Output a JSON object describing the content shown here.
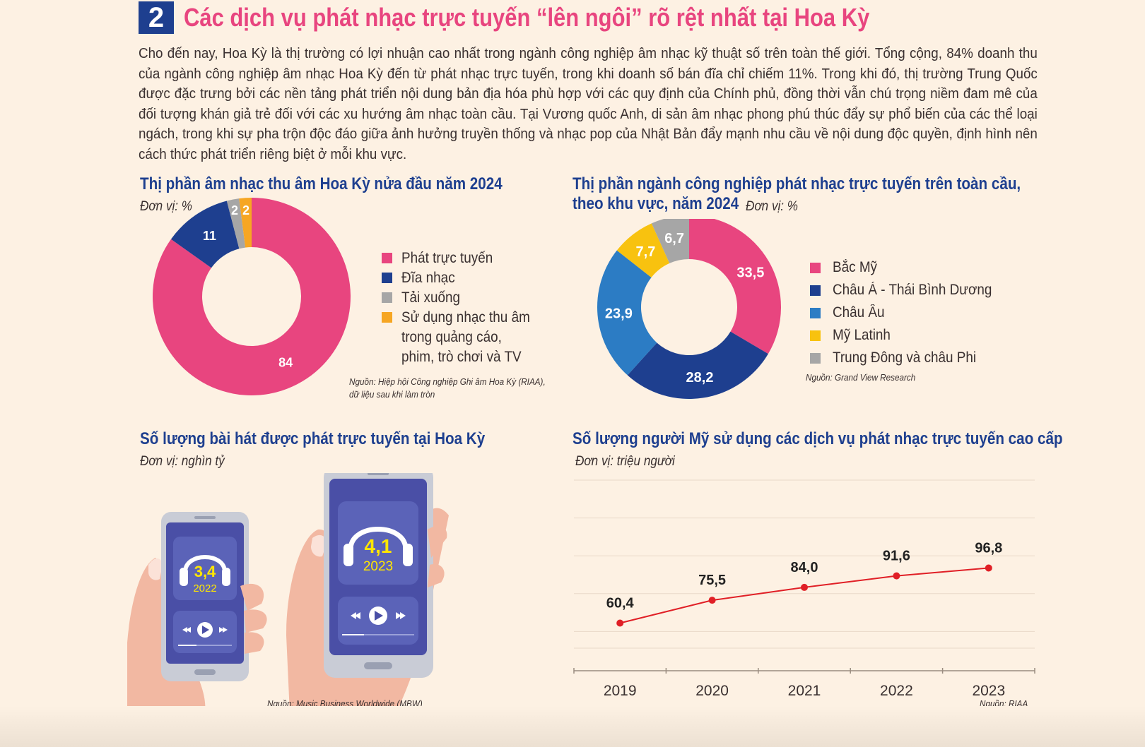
{
  "header": {
    "number": "2",
    "title": "Các dịch vụ phát nhạc trực tuyến “lên ngôi” rõ rệt nhất tại Hoa Kỳ"
  },
  "intro": "Cho đến nay, Hoa Kỳ là thị trường có lợi nhuận cao nhất trong ngành công nghiệp âm nhạc kỹ thuật số trên toàn thế giới. Tổng cộng, 84% doanh thu của ngành công nghiệp âm nhạc Hoa Kỳ đến từ phát nhạc trực tuyến, trong khi doanh số bán đĩa chỉ chiếm 11%. Trong khi đó, thị trường Trung Quốc được đặc trưng bởi các nền tảng phát triển nội dung bản địa hóa phù hợp với các quy định của Chính phủ, đồng thời vẫn chú trọng niềm đam mê của đối tượng khán giả trẻ đối với các xu hướng âm nhạc toàn cầu. Tại Vương quốc Anh, di sản âm nhạc phong phú thúc đẩy sự phổ biến của các thể loại ngách, trong khi sự pha trộn độc đáo giữa ảnh hưởng truyền thống và nhạc pop của Nhật Bản đẩy mạnh nhu cầu về nội dung độc quyền, định hình nên cách thức phát triển riêng biệt ở mỗi khu vực.",
  "chart_data": [
    {
      "type": "pie",
      "title": "Thị phần âm nhạc thu âm Hoa Kỳ nửa đầu năm 2024",
      "unit": "Đơn vị: %",
      "categories": [
        "Phát trực tuyến",
        "Đĩa nhạc",
        "Tải xuống",
        "Sử dụng nhạc thu âm trong quảng cáo, phim, trò chơi và TV"
      ],
      "values": [
        84,
        11,
        2,
        2
      ],
      "labels": [
        "84",
        "11",
        "2",
        "2"
      ],
      "colors": [
        "#e8457f",
        "#1e3f8f",
        "#a6a6a6",
        "#f6a623"
      ],
      "legend": [
        "Phát trực tuyến",
        "Đĩa nhạc",
        "Tải xuống",
        "Sử dụng nhạc thu âm",
        "trong quảng cáo,",
        "phim, trò chơi và TV"
      ],
      "source": [
        "Nguồn: Hiệp hội Công nghiệp Ghi âm Hoa Kỳ (RIAA),",
        "dữ liệu sau khi làm tròn"
      ]
    },
    {
      "type": "pie",
      "title": [
        "Thị phần ngành công nghiệp phát nhạc trực tuyến trên toàn cầu,",
        "theo khu vực, năm 2024"
      ],
      "unit": "Đơn vị: %",
      "categories": [
        "Bắc Mỹ",
        "Châu Á - Thái Bình Dương",
        "Châu Âu",
        "Mỹ Latinh",
        "Trung Đông và châu Phi"
      ],
      "values": [
        33.5,
        28.2,
        23.9,
        7.7,
        6.7
      ],
      "labels": [
        "33,5",
        "28,2",
        "23,9",
        "7,7",
        "6,7"
      ],
      "colors": [
        "#e8457f",
        "#1e3f8f",
        "#2c7cc4",
        "#f8c20f",
        "#a6a6a6"
      ],
      "source": "Nguồn: Grand View Research"
    },
    {
      "type": "bar",
      "title": "Số lượng bài hát được phát trực tuyến tại Hoa Kỳ",
      "unit": "Đơn vị: nghìn tỷ",
      "categories": [
        "2022",
        "2023"
      ],
      "values": [
        3.4,
        4.1
      ],
      "labels": [
        "3,4",
        "4,1"
      ],
      "source": "Nguồn: Music Business Worldwide (MBW)"
    },
    {
      "type": "line",
      "title": "Số lượng người Mỹ sử dụng các dịch vụ phát nhạc trực tuyến cao cấp",
      "unit": "Đơn vị: triệu người",
      "x": [
        "2019",
        "2020",
        "2021",
        "2022",
        "2023"
      ],
      "values": [
        60.4,
        75.5,
        84.0,
        91.6,
        96.8
      ],
      "labels": [
        "60,4",
        "75,5",
        "84,0",
        "91,6",
        "96,8"
      ],
      "ylim": [
        0,
        125
      ],
      "grid": true,
      "color": "#e01f26",
      "source": "Nguồn: RIAA"
    }
  ]
}
